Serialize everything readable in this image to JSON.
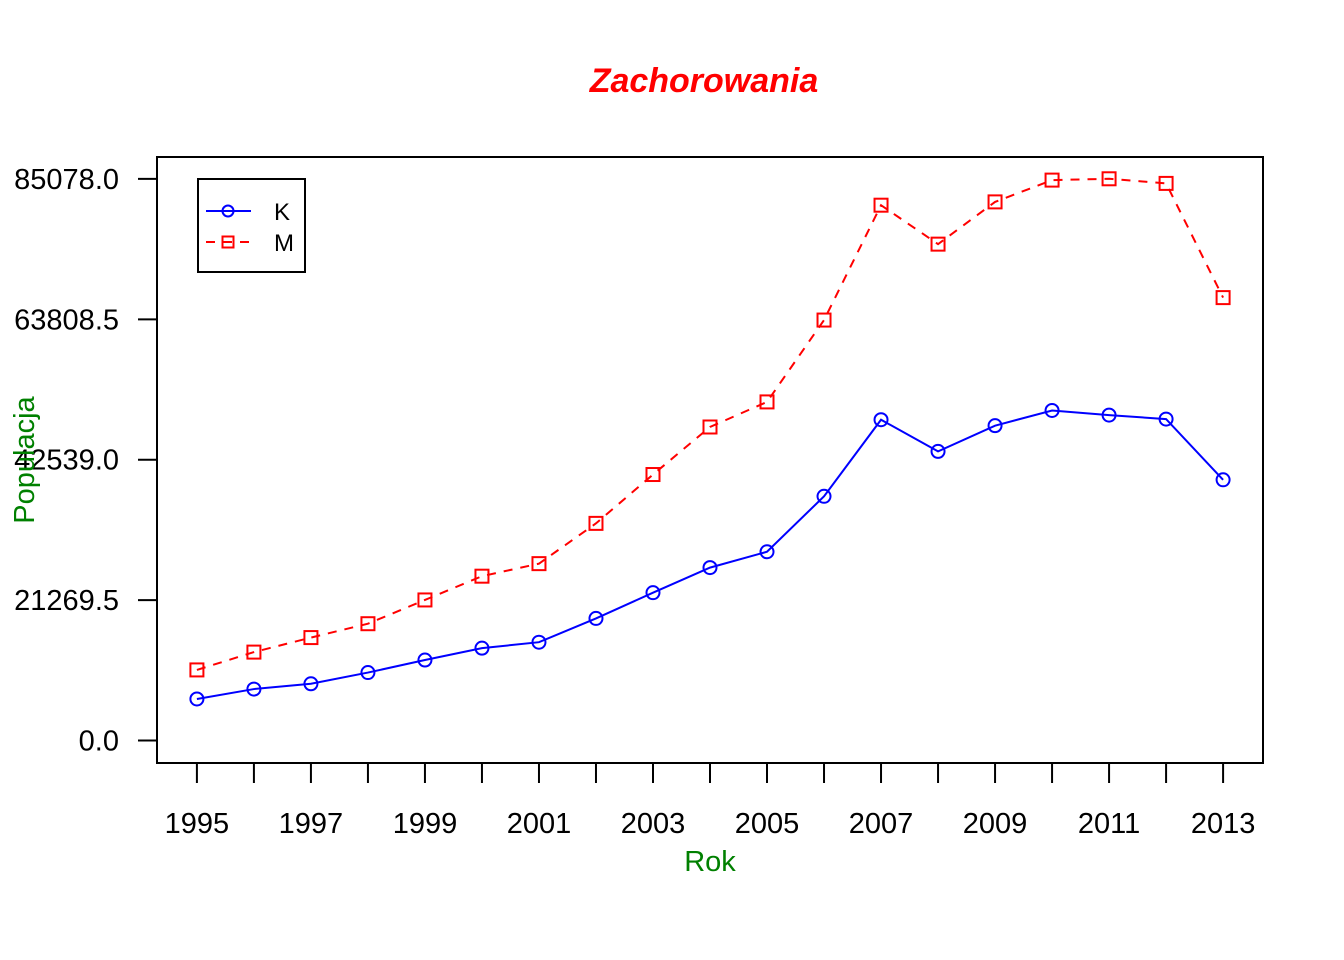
{
  "chart_data": {
    "type": "line",
    "title": "Zachorowania",
    "xlabel": "Rok",
    "ylabel": "Populacja",
    "x": [
      1995,
      1996,
      1997,
      1998,
      1999,
      2000,
      2001,
      2002,
      2003,
      2004,
      2005,
      2006,
      2007,
      2008,
      2009,
      2010,
      2011,
      2012,
      2013
    ],
    "x_tick_labels": [
      "1995",
      "1997",
      "1999",
      "2001",
      "2003",
      "2005",
      "2007",
      "2009",
      "2011",
      "2013"
    ],
    "y_tick_labels": [
      "0.0",
      "21269.5",
      "42539.0",
      "63808.5",
      "85078.0"
    ],
    "y_ticks": [
      0,
      21269.5,
      42539,
      63808.5,
      85078
    ],
    "ylim": [
      -3400,
      88400
    ],
    "xlim": [
      1994.3,
      2013.7
    ],
    "legend_position": "top-left",
    "grid": false,
    "series": [
      {
        "name": "K",
        "color": "#0000ff",
        "line_style": "solid",
        "marker": "circle",
        "values": [
          6300,
          7800,
          8600,
          10300,
          12200,
          14000,
          14900,
          18500,
          22400,
          26200,
          28600,
          37000,
          48600,
          43800,
          47700,
          50000,
          49300,
          48700,
          39500
        ]
      },
      {
        "name": "M",
        "color": "#ff0000",
        "line_style": "dashed",
        "marker": "square",
        "values": [
          10700,
          13400,
          15600,
          17700,
          21300,
          24900,
          26800,
          32900,
          40300,
          47500,
          51300,
          63700,
          81100,
          75200,
          81600,
          84900,
          85100,
          84400,
          67100
        ]
      }
    ]
  },
  "colors": {
    "title": "#ff0000",
    "axis_labels": "#008000",
    "axes": "#000000"
  }
}
